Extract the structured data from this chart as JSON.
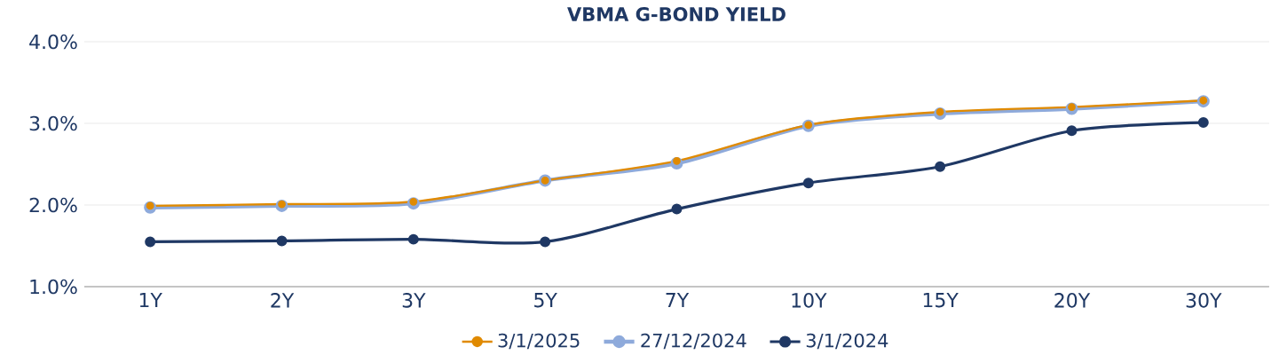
{
  "chart_data": {
    "type": "line",
    "title": "VBMA G-BOND YIELD",
    "categories": [
      "1Y",
      "2Y",
      "3Y",
      "5Y",
      "7Y",
      "10Y",
      "15Y",
      "20Y",
      "30Y"
    ],
    "series": [
      {
        "name": "3/1/2025",
        "color": "#e08a00",
        "values": [
          1.99,
          2.01,
          2.04,
          2.3,
          2.54,
          2.98,
          3.14,
          3.2,
          3.28
        ]
      },
      {
        "name": "27/12/2024",
        "color": "#8eaadb",
        "values": [
          1.97,
          1.99,
          2.02,
          2.3,
          2.51,
          2.97,
          3.12,
          3.18,
          3.27
        ]
      },
      {
        "name": "3/1/2024",
        "color": "#1f3864",
        "values": [
          1.55,
          1.56,
          1.58,
          1.55,
          1.95,
          2.27,
          2.47,
          2.91,
          3.01
        ]
      }
    ],
    "ylim": [
      1.0,
      4.0
    ],
    "yticks": [
      {
        "value": 1.0,
        "label": "1.0%"
      },
      {
        "value": 2.0,
        "label": "2.0%"
      },
      {
        "value": 3.0,
        "label": "3.0%"
      },
      {
        "value": 4.0,
        "label": "4.0%"
      }
    ],
    "grid": "y",
    "legend": "bottom",
    "marker": "circle",
    "line_style": "solid"
  }
}
